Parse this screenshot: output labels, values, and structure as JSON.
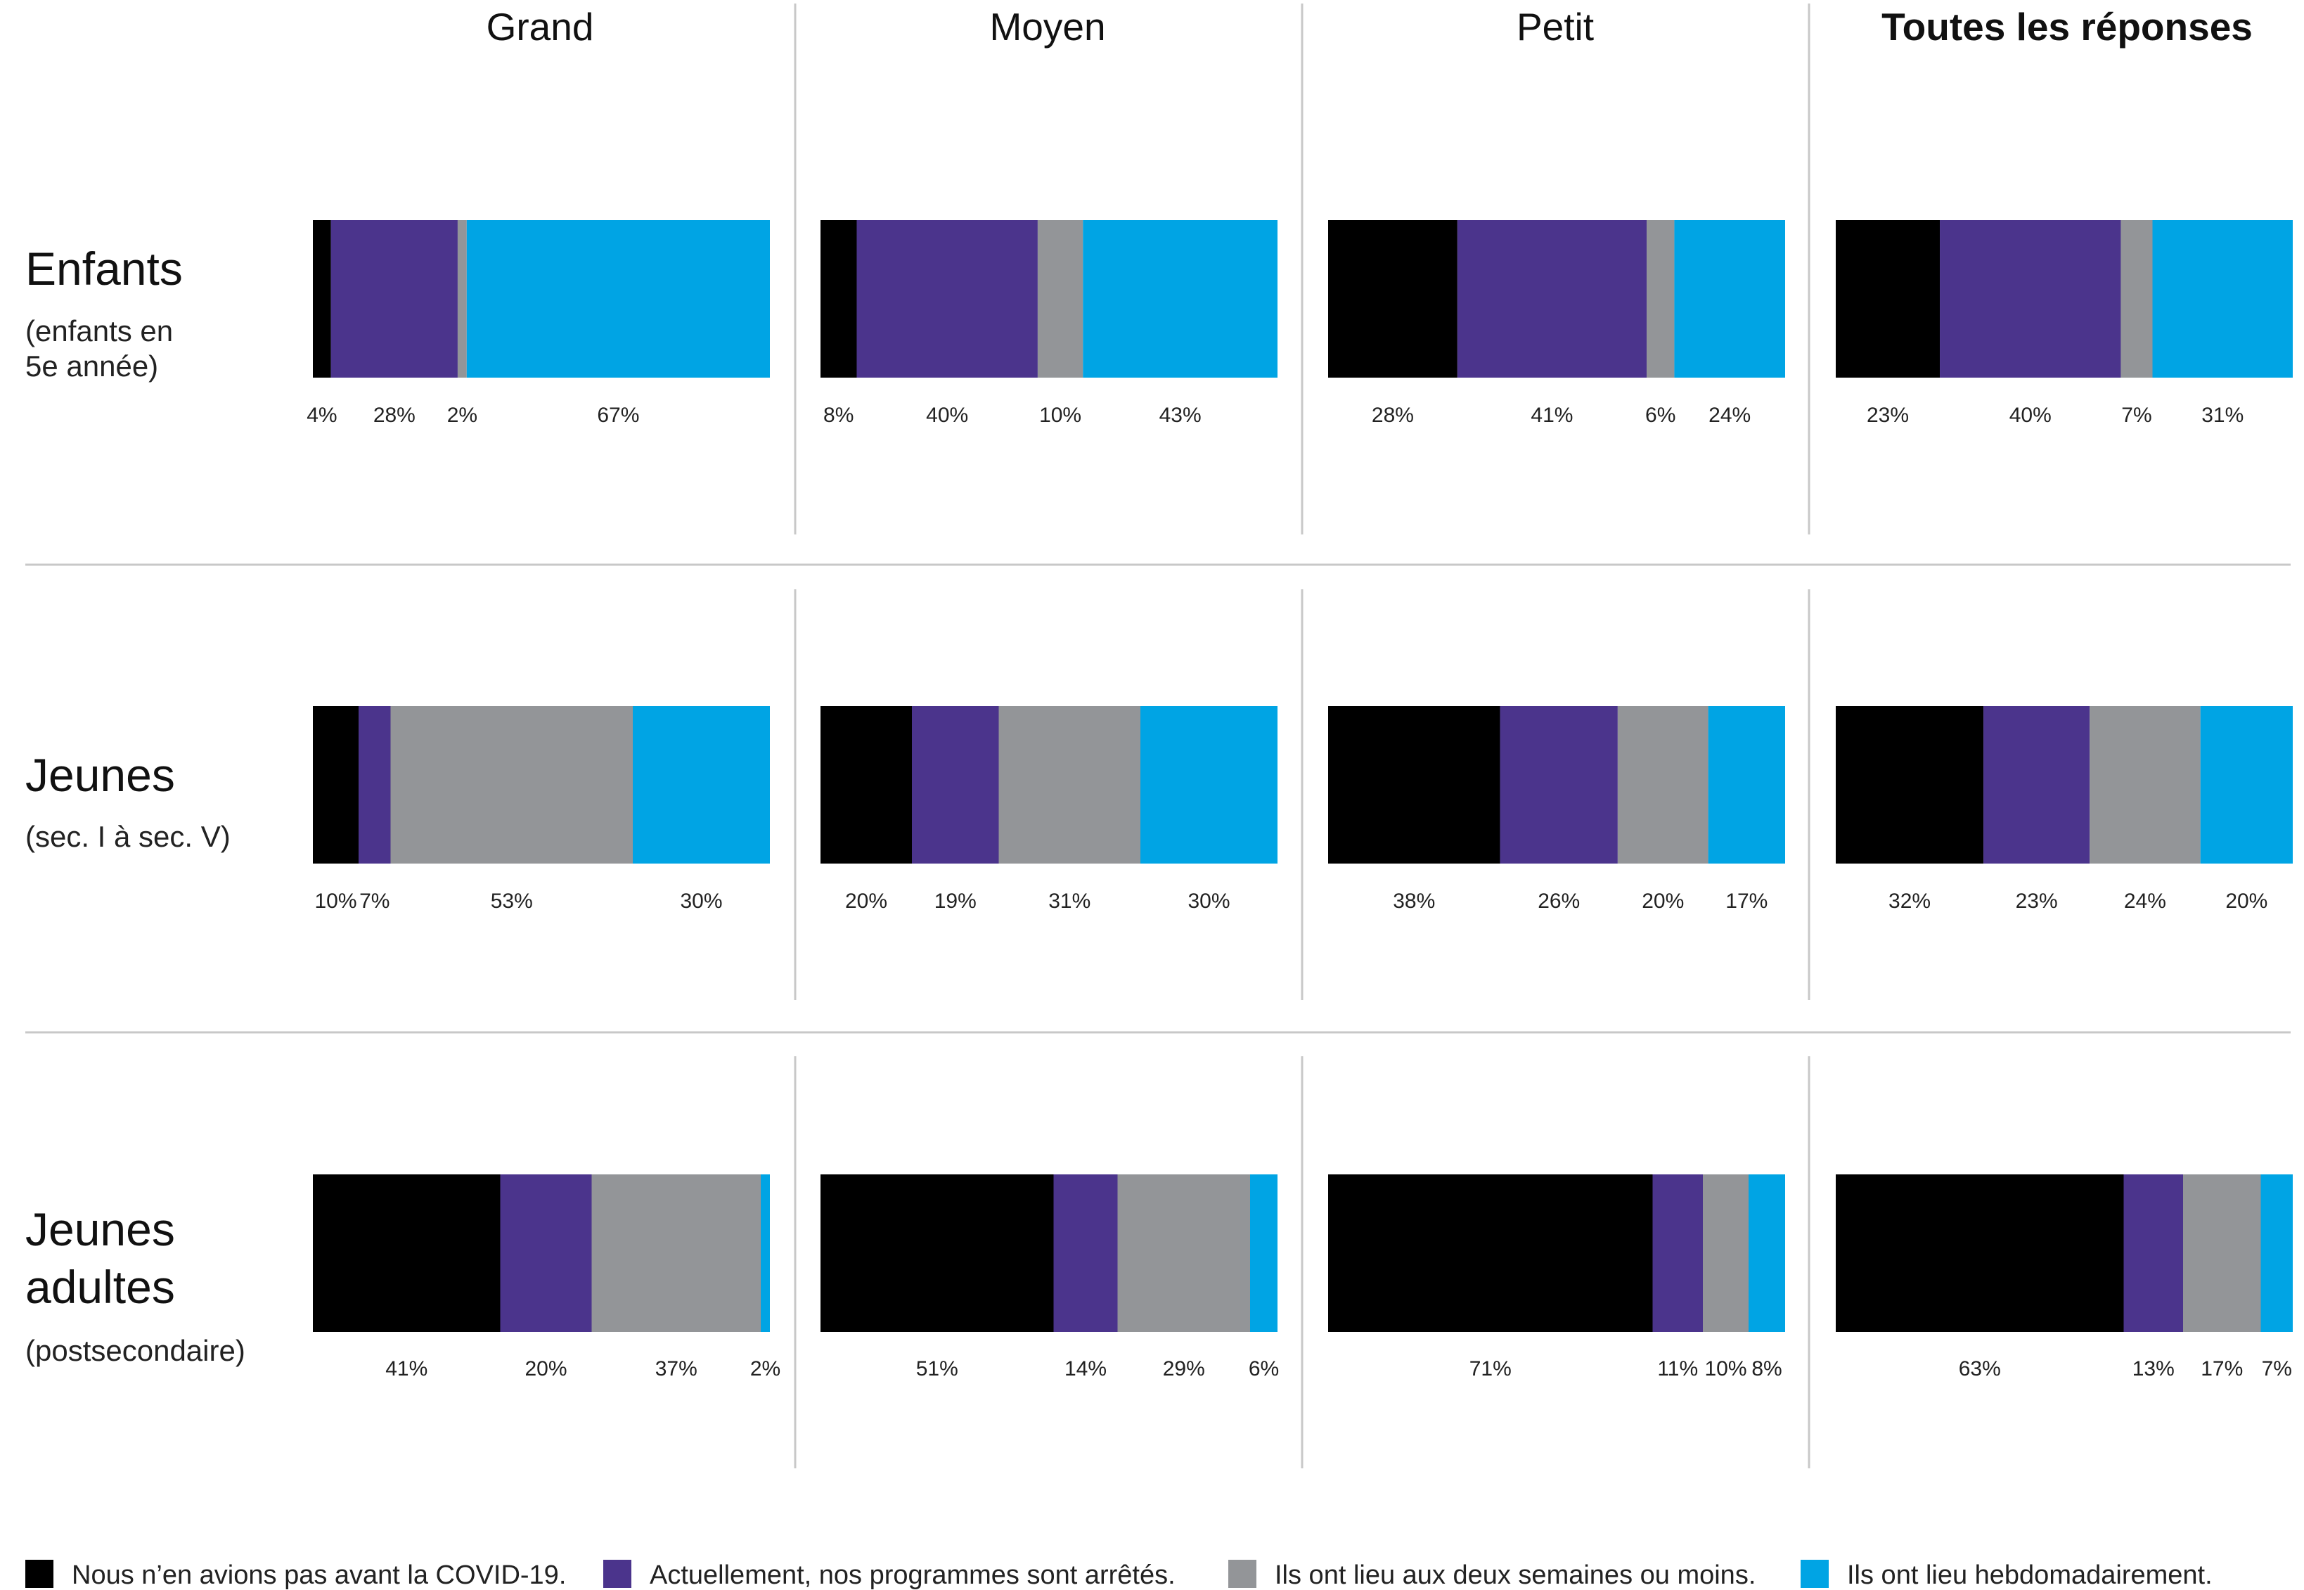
{
  "chart_data": {
    "type": "bar",
    "orientation": "horizontal-stacked-100",
    "columns": [
      {
        "title": "Grand",
        "bold": false
      },
      {
        "title": "Moyen",
        "bold": false
      },
      {
        "title": "Petit",
        "bold": false
      },
      {
        "title": "Toutes les réponses",
        "bold": true
      }
    ],
    "rows": [
      {
        "title_lines": [
          "Enfants"
        ],
        "subtitle_lines": [
          "(enfants en",
          "5e année)"
        ]
      },
      {
        "title_lines": [
          "Jeunes"
        ],
        "subtitle_lines": [
          "(sec. I à sec. V)"
        ]
      },
      {
        "title_lines": [
          "Jeunes",
          "adultes"
        ],
        "subtitle_lines": [
          "(postsecondaire)"
        ]
      }
    ],
    "legend": {
      "placement": "bottom",
      "entries": [
        {
          "label": "Nous n’en avions pas avant la COVID-19.",
          "color": "#000000"
        },
        {
          "label": "Actuellement, nos programmes sont arrêtés.",
          "color": "#4b348c"
        },
        {
          "label": "Ils ont lieu aux deux semaines ou moins.",
          "color": "#939598"
        },
        {
          "label": "Ils ont lieu hebdomadairement.",
          "color": "#00a4e4"
        }
      ]
    },
    "values": [
      [
        [
          4,
          28,
          2,
          67
        ],
        [
          8,
          40,
          10,
          43
        ],
        [
          28,
          41,
          6,
          24
        ],
        [
          23,
          40,
          7,
          31
        ]
      ],
      [
        [
          10,
          7,
          53,
          30
        ],
        [
          20,
          19,
          31,
          30
        ],
        [
          38,
          26,
          20,
          17
        ],
        [
          32,
          23,
          24,
          20
        ]
      ],
      [
        [
          41,
          20,
          37,
          2
        ],
        [
          51,
          14,
          29,
          6
        ],
        [
          71,
          11,
          10,
          8
        ],
        [
          63,
          13,
          17,
          7
        ]
      ]
    ],
    "unit": "%",
    "grid": false
  }
}
